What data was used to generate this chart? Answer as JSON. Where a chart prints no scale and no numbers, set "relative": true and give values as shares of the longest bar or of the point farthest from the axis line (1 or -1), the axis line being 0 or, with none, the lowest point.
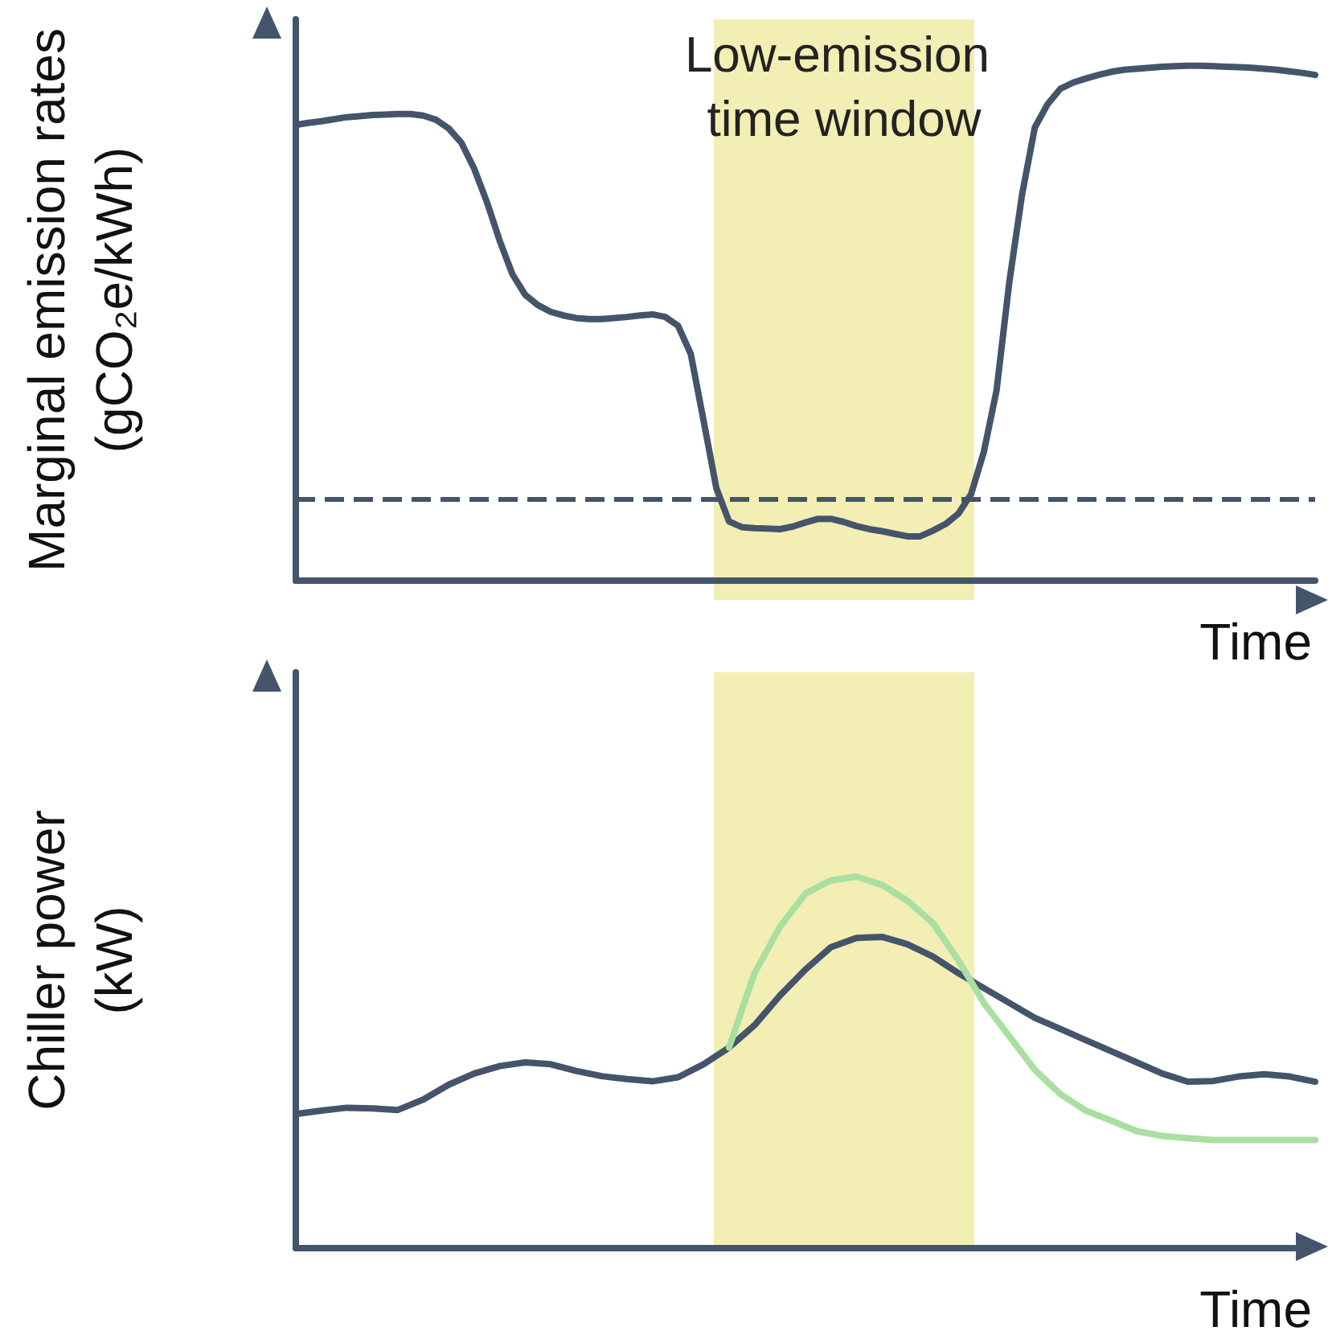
{
  "chart_data": [
    {
      "type": "line",
      "relative": true,
      "xlabel": "Time",
      "ylabel": "Marginal emission rates\n(gCO₂e/kWh)",
      "marker": "none",
      "annotations": [
        "Low-emission time window"
      ],
      "categories": [
        null,
        null,
        null,
        null,
        null,
        null,
        null,
        null,
        null,
        null,
        null,
        null,
        null,
        null,
        null,
        null,
        null,
        null,
        null,
        null,
        null,
        null,
        null,
        null,
        null,
        null,
        null,
        null,
        null,
        null,
        null,
        null,
        null,
        null,
        null,
        null,
        null,
        null,
        null,
        null,
        null,
        null,
        null,
        null,
        null,
        null,
        null,
        null,
        null,
        null,
        null,
        null,
        null,
        null,
        null,
        null,
        null,
        null,
        null,
        null,
        null,
        null,
        null,
        null,
        null,
        null,
        null,
        null,
        null,
        null,
        null,
        null,
        null,
        null,
        null,
        null,
        null,
        null,
        null,
        null,
        null
      ],
      "series": [
        {
          "color": "#44546a",
          "values": [
            0.885,
            0.889,
            0.892,
            0.896,
            0.9,
            0.902,
            0.904,
            0.905,
            0.906,
            0.906,
            0.903,
            0.895,
            0.878,
            0.85,
            0.8,
            0.735,
            0.66,
            0.595,
            0.555,
            0.535,
            0.522,
            0.515,
            0.51,
            0.508,
            0.508,
            0.51,
            0.512,
            0.515,
            0.517,
            0.512,
            0.495,
            0.44,
            0.311,
            0.18,
            0.115,
            0.104,
            0.102,
            0.101,
            0.1,
            0.105,
            0.113,
            0.12,
            0.12,
            0.114,
            0.106,
            0.1,
            0.096,
            0.091,
            0.086,
            0.086,
            0.097,
            0.11,
            0.13,
            0.168,
            0.25,
            0.37,
            0.58,
            0.75,
            0.88,
            0.925,
            0.955,
            0.967,
            0.975,
            0.982,
            0.988,
            0.992,
            0.994,
            0.996,
            0.998,
            0.999,
            1,
            1,
            0.999,
            0.998,
            0.997,
            0.996,
            0.994,
            0.992,
            0.989,
            0.986,
            0.982
          ]
        }
      ],
      "ref_lines": [
        {
          "axis": "y",
          "value": 0.16,
          "color": "#44546a",
          "line_style": "dashed"
        }
      ]
    },
    {
      "type": "line",
      "relative": true,
      "xlabel": "Time",
      "ylabel": "Chiller power\n(kW)",
      "marker": "none",
      "categories": [
        null,
        null,
        null,
        null,
        null,
        null,
        null,
        null,
        null,
        null,
        null,
        null,
        null,
        null,
        null,
        null,
        null,
        null,
        null,
        null,
        null,
        null,
        null,
        null,
        null,
        null,
        null,
        null,
        null,
        null,
        null,
        null,
        null,
        null,
        null,
        null,
        null,
        null,
        null,
        null,
        null
      ],
      "series": [
        {
          "color": "#44546a",
          "values": [
            0.361,
            0.37,
            0.378,
            0.376,
            0.372,
            0.4,
            0.44,
            0.47,
            0.49,
            0.5,
            0.495,
            0.477,
            0.463,
            0.455,
            0.449,
            0.46,
            0.495,
            0.54,
            0.6,
            0.68,
            0.75,
            0.81,
            0.835,
            0.838,
            0.818,
            0.785,
            0.74,
            0.7,
            0.66,
            0.62,
            0.59,
            0.56,
            0.53,
            0.5,
            0.47,
            0.448,
            0.45,
            0.462,
            0.468,
            0.462,
            0.448
          ]
        },
        {
          "color": "#a9dfa0",
          "values": [
            null,
            null,
            null,
            null,
            null,
            null,
            null,
            null,
            null,
            null,
            null,
            null,
            null,
            null,
            null,
            null,
            null,
            0.54,
            0.74,
            0.865,
            0.955,
            0.99,
            1,
            0.978,
            0.935,
            0.875,
            0.775,
            0.66,
            0.57,
            0.48,
            0.415,
            0.37,
            0.343,
            0.315,
            0.302,
            0.296,
            0.291,
            0.291,
            0.291,
            0.291,
            0.291
          ]
        }
      ]
    }
  ]
}
